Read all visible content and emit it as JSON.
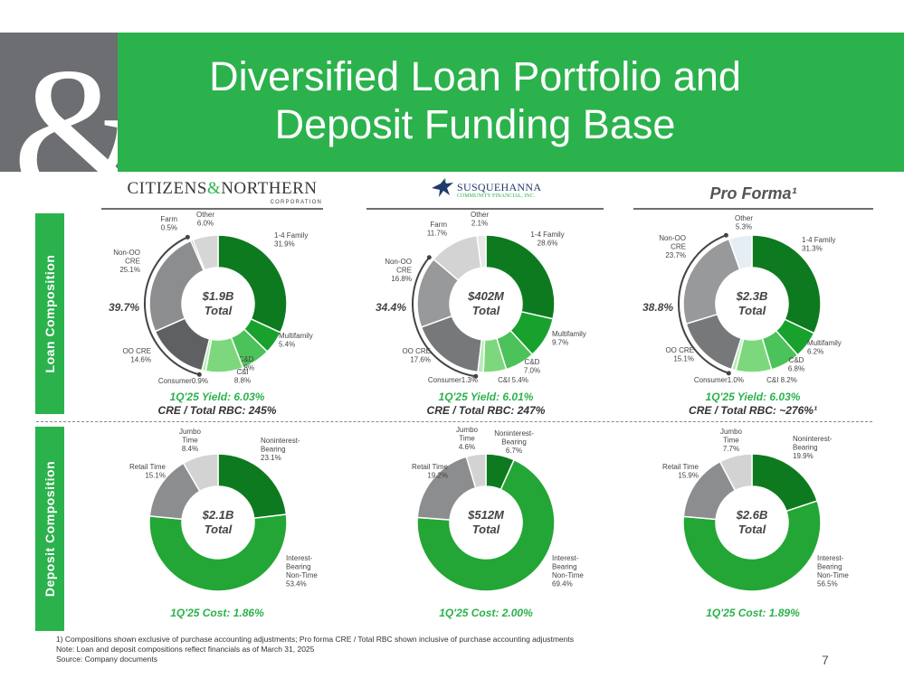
{
  "header": {
    "title_line1": "Diversified Loan Portfolio and",
    "title_line2": "Deposit Funding Base",
    "ampersand": "&",
    "brand_color": "#2bb24c",
    "gray_color": "#6d6e71"
  },
  "side_labels": {
    "loan": "Loan Composition",
    "deposit": "Deposit Composition"
  },
  "columns": {
    "cn_logo": {
      "part1": "CITIZENS",
      "amp": "&",
      "part2": "NORTHERN",
      "sub": "CORPORATION"
    },
    "sq_logo": {
      "name": "SUSQUEHANNA",
      "sub": "COMMUNITY FINANCIAL, INC."
    },
    "proforma": "Pro Forma¹"
  },
  "stats": {
    "cn_yield": "1Q'25 Yield: 6.03%",
    "cn_rbc": "CRE / Total RBC: 245%",
    "sq_yield": "1Q'25 Yield: 6.01%",
    "sq_rbc": "CRE / Total RBC: 247%",
    "pf_yield": "1Q'25 Yield: 6.03%",
    "pf_rbc": "CRE / Total RBC: ~276%¹",
    "cn_cost": "1Q'25 Cost: 1.86%",
    "sq_cost": "1Q'25 Cost: 2.00%",
    "pf_cost": "1Q'25 Cost: 1.89%"
  },
  "chart_data": [
    {
      "type": "pie",
      "panel": "cn-loan",
      "center_label": [
        "$1.9B",
        "Total"
      ],
      "bracket_label": "39.7%",
      "slices": [
        {
          "label": [
            "1-4 Family",
            "31.9%"
          ],
          "value": 31.9,
          "color": "#0e7a1f"
        },
        {
          "label": [
            "Multifamily",
            "5.4%"
          ],
          "value": 5.4,
          "color": "#18a22d"
        },
        {
          "label": [
            "C&D",
            "6.8%"
          ],
          "value": 6.8,
          "color": "#4cc25a"
        },
        {
          "label": [
            "C&I",
            "8.8%"
          ],
          "value": 8.8,
          "color": "#7dd87d"
        },
        {
          "label": [
            "Consumer0.9%"
          ],
          "value": 0.9,
          "color": "#b8ecb8"
        },
        {
          "label": [
            "OO CRE",
            "14.6%"
          ],
          "value": 14.6,
          "color": "#5f6062"
        },
        {
          "label": [
            "Non-OO",
            "CRE",
            "25.1%"
          ],
          "value": 25.1,
          "color": "#8c8d8f"
        },
        {
          "label": [
            "Farm",
            "0.5%"
          ],
          "value": 0.5,
          "color": "#b0b1b3"
        },
        {
          "label": [
            "Other",
            "6.0%"
          ],
          "value": 6.0,
          "color": "#d6d6d6"
        }
      ]
    },
    {
      "type": "pie",
      "panel": "sq-loan",
      "center_label": [
        "$402M",
        "Total"
      ],
      "bracket_label": "34.4%",
      "slices": [
        {
          "label": [
            "1-4 Family",
            "28.6%"
          ],
          "value": 28.6,
          "color": "#0e7a1f"
        },
        {
          "label": [
            "Multifamily",
            "9.7%"
          ],
          "value": 9.7,
          "color": "#18a22d"
        },
        {
          "label": [
            "C&D",
            "7.0%"
          ],
          "value": 7.0,
          "color": "#4cc25a"
        },
        {
          "label": [
            "C&I 5.4%"
          ],
          "value": 5.4,
          "color": "#7dd87d"
        },
        {
          "label": [
            "Consumer1.3%"
          ],
          "value": 1.3,
          "color": "#b8ecb8"
        },
        {
          "label": [
            "OO CRE",
            "17.6%"
          ],
          "value": 17.6,
          "color": "#77787a"
        },
        {
          "label": [
            "Non-OO",
            "CRE",
            "16.8%"
          ],
          "value": 16.8,
          "color": "#98999b"
        },
        {
          "label": [
            "Farm",
            "11.7%"
          ],
          "value": 11.7,
          "color": "#d3d3d3"
        },
        {
          "label": [
            "Other",
            "2.1%"
          ],
          "value": 2.1,
          "color": "#e8e8e8"
        }
      ]
    },
    {
      "type": "pie",
      "panel": "pf-loan",
      "center_label": [
        "$2.3B",
        "Total"
      ],
      "bracket_label": "38.8%",
      "slices": [
        {
          "label": [
            "1-4 Family",
            "31.3%"
          ],
          "value": 31.3,
          "color": "#0e7a1f"
        },
        {
          "label": [
            "Multifamily",
            "6.2%"
          ],
          "value": 6.2,
          "color": "#18a22d"
        },
        {
          "label": [
            "C&D",
            "6.8%"
          ],
          "value": 6.8,
          "color": "#4cc25a"
        },
        {
          "label": [
            "C&I 8.2%"
          ],
          "value": 8.2,
          "color": "#7dd87d"
        },
        {
          "label": [
            "Consumer1.0%"
          ],
          "value": 1.0,
          "color": "#b8ecb8"
        },
        {
          "label": [
            "OO CRE",
            "15.1%"
          ],
          "value": 15.1,
          "color": "#77787a"
        },
        {
          "label": [
            "Non-OO",
            "CRE",
            "23.7%"
          ],
          "value": 23.7,
          "color": "#98999b"
        },
        {
          "label": [
            "Other",
            "5.3%"
          ],
          "value": 5.3,
          "color": "#e6eef5"
        }
      ]
    },
    {
      "type": "pie",
      "panel": "cn-deposit",
      "center_label": [
        "$2.1B",
        "Total"
      ],
      "slices": [
        {
          "label": [
            "Noninterest-",
            "Bearing",
            "23.1%"
          ],
          "value": 23.1,
          "color": "#0e7a1f"
        },
        {
          "label": [
            "Interest-",
            "Bearing",
            "Non-Time",
            "53.4%"
          ],
          "value": 53.4,
          "color": "#23a635"
        },
        {
          "label": [
            "Retail Time",
            "15.1%"
          ],
          "value": 15.1,
          "color": "#8c8d8f"
        },
        {
          "label": [
            "Jumbo",
            "Time",
            "8.4%"
          ],
          "value": 8.4,
          "color": "#d3d3d3"
        }
      ]
    },
    {
      "type": "pie",
      "panel": "sq-deposit",
      "center_label": [
        "$512M",
        "Total"
      ],
      "slices": [
        {
          "label": [
            "Noninterest-",
            "Bearing",
            "6.7%"
          ],
          "value": 6.7,
          "color": "#0e7a1f"
        },
        {
          "label": [
            "Interest-",
            "Bearing",
            "Non-Time",
            "69.4%"
          ],
          "value": 69.4,
          "color": "#23a635"
        },
        {
          "label": [
            "Retail Time",
            "19.2%"
          ],
          "value": 19.2,
          "color": "#8c8d8f"
        },
        {
          "label": [
            "Jumbo",
            "Time",
            "4.6%"
          ],
          "value": 4.6,
          "color": "#d3d3d3"
        }
      ]
    },
    {
      "type": "pie",
      "panel": "pf-deposit",
      "center_label": [
        "$2.6B",
        "Total"
      ],
      "slices": [
        {
          "label": [
            "Noninterest-",
            "Bearing",
            "19.9%"
          ],
          "value": 19.9,
          "color": "#0e7a1f"
        },
        {
          "label": [
            "Interest-",
            "Bearing",
            "Non-Time",
            "56.5%"
          ],
          "value": 56.5,
          "color": "#23a635"
        },
        {
          "label": [
            "Retail Time",
            "15.9%"
          ],
          "value": 15.9,
          "color": "#8c8d8f"
        },
        {
          "label": [
            "Jumbo",
            "Time",
            "7.7%"
          ],
          "value": 7.7,
          "color": "#d3d3d3"
        }
      ]
    }
  ],
  "footnotes": {
    "line1": "1)     Compositions shown exclusive of purchase accounting adjustments; Pro forma CRE / Total RBC shown inclusive of purchase accounting adjustments",
    "line2": "Note: Loan and deposit compositions reflect financials as of March 31, 2025",
    "line3": "Source: Company documents"
  },
  "page_number": "7"
}
